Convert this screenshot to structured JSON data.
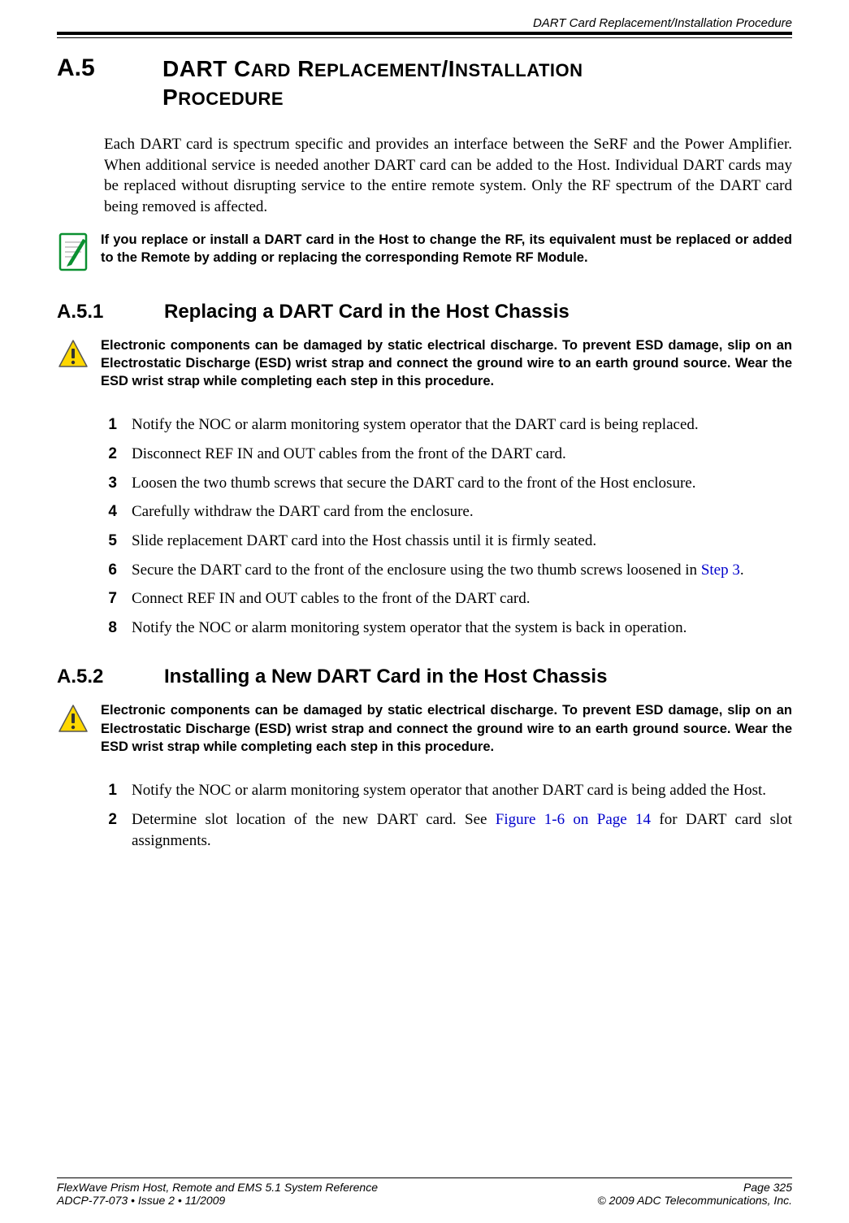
{
  "header": {
    "running_title": "DART Card Replacement/Installation Procedure"
  },
  "section": {
    "number": "A.5",
    "title_line1_caps": "DART C",
    "title_line1_sm1": "ARD",
    "title_line1_caps2": " R",
    "title_line1_sm2": "EPLACEMENT",
    "title_line1_caps3": "/I",
    "title_line1_sm3": "NSTALLATION",
    "title_line2_caps": "P",
    "title_line2_sm": "ROCEDURE"
  },
  "intro_text": "Each DART card is spectrum specific and provides an interface between the SeRF and the Power Amplifier. When additional service is needed another DART card can be added to the Host. Individual DART cards may be replaced without disrupting service to the entire remote system. Only the RF spectrum of the DART card being removed is affected.",
  "note1": {
    "text": "If you replace or install a DART card in the Host to change the RF, its equivalent must be replaced or added to the Remote by adding or replacing the corresponding Remote RF Module.",
    "icon_border_color": "#0a9030",
    "icon_pencil_color": "#0a9030"
  },
  "sub1": {
    "number": "A.5.1",
    "title": "Replacing a DART Card in the Host Chassis"
  },
  "warning_text": "Electronic components can be damaged by static electrical discharge. To prevent ESD damage, slip on an Electrostatic Discharge (ESD) wrist strap and connect the ground wire to an earth ground source. Wear the ESD wrist strap while completing each step in this procedure.",
  "warning_icon": {
    "fill": "#ffd700",
    "stroke": "#555555",
    "exclaim": "#333333"
  },
  "steps1": [
    {
      "n": "1",
      "t": "Notify the NOC or alarm monitoring system operator that the DART card is being replaced."
    },
    {
      "n": "2",
      "t": "Disconnect REF IN and OUT cables from the front of the DART card."
    },
    {
      "n": "3",
      "t": "Loosen the two thumb screws that secure the DART card to the front of the Host enclosure."
    },
    {
      "n": "4",
      "t": "Carefully withdraw the DART card from the enclosure."
    },
    {
      "n": "5",
      "t": "Slide replacement DART card into the Host chassis until it is firmly seated."
    },
    {
      "n": "6",
      "t_pre": "Secure the DART card to the front of the enclosure using the two thumb screws loosened in ",
      "link": "Step 3",
      "t_post": "."
    },
    {
      "n": "7",
      "t": "Connect REF IN and OUT cables to the front of the DART card."
    },
    {
      "n": "8",
      "t": "Notify the NOC or alarm monitoring system operator that the system is back in operation."
    }
  ],
  "sub2": {
    "number": "A.5.2",
    "title": "Installing a New DART Card in the Host Chassis"
  },
  "steps2": [
    {
      "n": "1",
      "t": "Notify the NOC or alarm monitoring system operator that another DART card is being added the Host."
    },
    {
      "n": "2",
      "t_pre": "Determine slot location of the new DART card. See ",
      "link": "Figure 1-6 on Page 14",
      "t_post": " for DART card slot assignments."
    }
  ],
  "footer": {
    "left1": "FlexWave Prism Host, Remote and EMS 5.1 System Reference",
    "right1": "Page 325",
    "left2": "ADCP-77-073  •  Issue 2  •  11/2009",
    "right2": "© 2009 ADC Telecommunications, Inc."
  },
  "colors": {
    "link": "#0000cc"
  }
}
